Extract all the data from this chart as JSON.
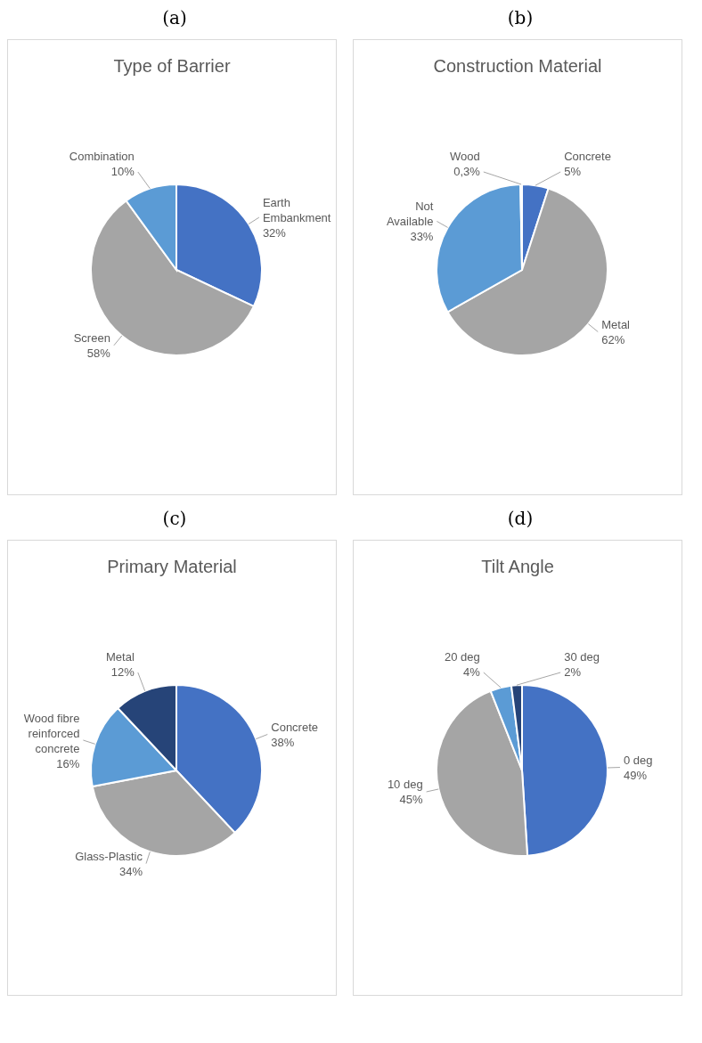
{
  "chart_data": [
    {
      "type": "pie",
      "title": "Type of Barrier",
      "annotations": [
        "(a)"
      ],
      "categories": [
        "Earth Embankment",
        "Screen",
        "Combination"
      ],
      "values": [
        32,
        58,
        10
      ],
      "colors": [
        "#4472c4",
        "#a5a5a5",
        "#5b9bd5"
      ],
      "value_labels": [
        "32%",
        "58%",
        "10%"
      ]
    },
    {
      "type": "pie",
      "title": "Construction Material",
      "annotations": [
        "(b)"
      ],
      "categories": [
        "Concrete",
        "Metal",
        "Not Available",
        "Wood"
      ],
      "values": [
        5,
        62,
        33,
        0.3
      ],
      "colors": [
        "#4472c4",
        "#a5a5a5",
        "#5b9bd5",
        "#264478"
      ],
      "value_labels": [
        "5%",
        "62%",
        "33%",
        "0,3%"
      ]
    },
    {
      "type": "pie",
      "title": "Primary Material",
      "annotations": [
        "(c)"
      ],
      "categories": [
        "Concrete",
        "Glass-Plastic",
        "Wood fibre reinforced concrete",
        "Metal"
      ],
      "values": [
        38,
        34,
        16,
        12
      ],
      "colors": [
        "#4472c4",
        "#a5a5a5",
        "#5b9bd5",
        "#264478"
      ],
      "value_labels": [
        "38%",
        "34%",
        "16%",
        "12%"
      ]
    },
    {
      "type": "pie",
      "title": "Tilt Angle",
      "annotations": [
        "(d)"
      ],
      "categories": [
        "0 deg",
        "10 deg",
        "20 deg",
        "30 deg"
      ],
      "values": [
        49,
        45,
        4,
        2
      ],
      "colors": [
        "#4472c4",
        "#a5a5a5",
        "#5b9bd5",
        "#264478"
      ],
      "value_labels": [
        "49%",
        "45%",
        "4%",
        "2%"
      ]
    }
  ]
}
